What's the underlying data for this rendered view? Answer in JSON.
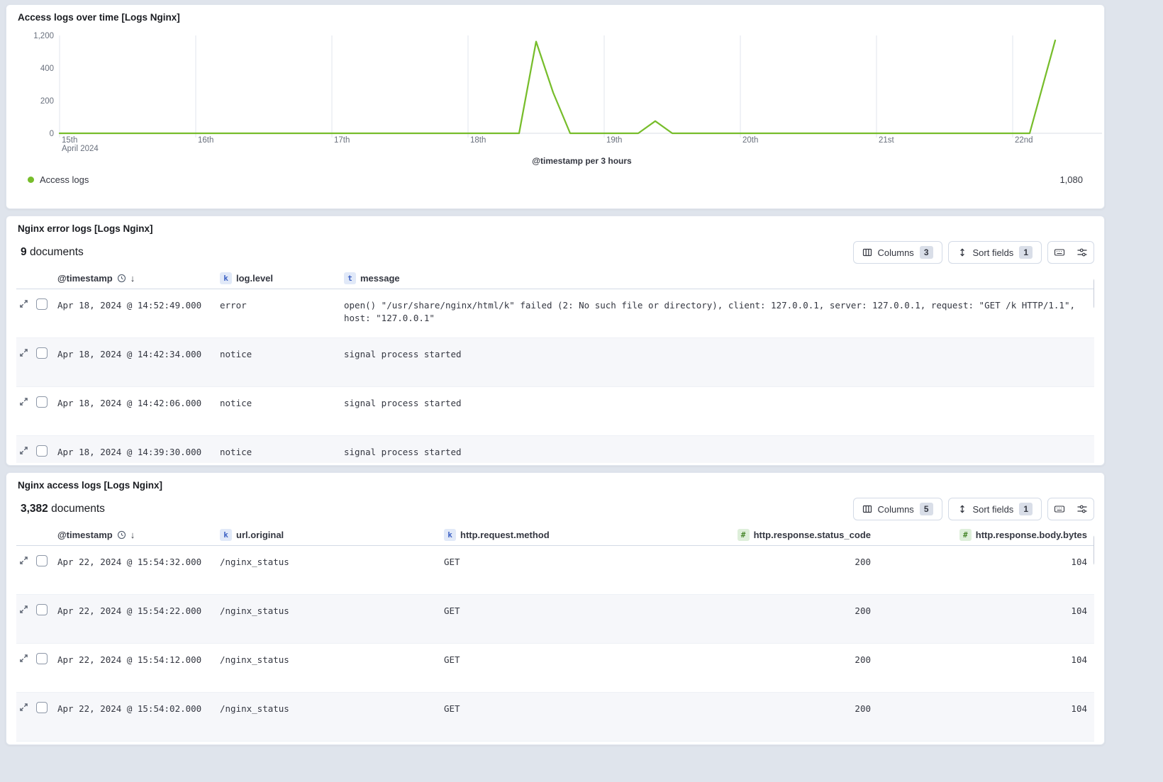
{
  "colors": {
    "series_green": "#77BD2B",
    "badge_blue_bg": "#E1E9F8",
    "badge_blue_fg": "#3F63C4",
    "badge_green_bg": "#DEEFDA",
    "badge_green_fg": "#4C8A31"
  },
  "chart_panel": {
    "title": "Access logs over time [Logs Nginx]",
    "x_axis_title": "@timestamp per 3 hours",
    "legend_label": "Access logs",
    "legend_value": "1,080"
  },
  "chart_data": {
    "type": "line",
    "title": "Access logs over time [Logs Nginx]",
    "xlabel": "@timestamp per 3 hours",
    "ylabel": "",
    "x_range": [
      "2024-04-15 00:00",
      "2024-04-22 09:00"
    ],
    "bucket_interval": "3 hours",
    "grid": "vertical-day-gridlines",
    "y_ticks": [
      "0",
      "200",
      "400",
      "1,200"
    ],
    "y_tick_values": [
      0,
      200,
      400,
      1200
    ],
    "x_ticks": [
      {
        "label": "15th",
        "sub": "April 2024",
        "h": 0
      },
      {
        "label": "16th",
        "h": 24
      },
      {
        "label": "17th",
        "h": 48
      },
      {
        "label": "18th",
        "h": 72
      },
      {
        "label": "19th",
        "h": 96
      },
      {
        "label": "20th",
        "h": 120
      },
      {
        "label": "21st",
        "h": 144
      },
      {
        "label": "22nd",
        "h": 168
      }
    ],
    "series": [
      {
        "name": "Access logs",
        "color": "#77BD2B",
        "note": "values are 0 between listed zero anchors; h = hours since 2024-04-15 00:00",
        "points": [
          {
            "t": "2024-04-15 00:00",
            "h": 0,
            "v": 0
          },
          {
            "t": "2024-04-18 09:00",
            "h": 81,
            "v": 0
          },
          {
            "t": "2024-04-18 12:00",
            "h": 84,
            "v": 1050
          },
          {
            "t": "2024-04-18 15:00",
            "h": 87,
            "v": 250
          },
          {
            "t": "2024-04-18 18:00",
            "h": 90,
            "v": 0
          },
          {
            "t": "2024-04-19 06:00",
            "h": 102,
            "v": 0
          },
          {
            "t": "2024-04-19 09:00",
            "h": 105,
            "v": 75
          },
          {
            "t": "2024-04-19 12:00",
            "h": 108,
            "v": 0
          },
          {
            "t": "2024-04-22 03:00",
            "h": 171,
            "v": 0
          },
          {
            "t": "2024-04-22 07:30",
            "h": 175.5,
            "v": 1080
          }
        ]
      }
    ],
    "legend": {
      "label": "Access logs",
      "value": "1,080",
      "position": "bottom-left"
    }
  },
  "error_table": {
    "title": "Nginx error logs [Logs Nginx]",
    "doc_count": "9",
    "doc_count_label": "documents",
    "toolbar": {
      "columns_label": "Columns",
      "columns_count": "3",
      "sort_label": "Sort fields",
      "sort_count": "1"
    },
    "columns": [
      {
        "label": "@timestamp",
        "type": "time",
        "sorted": "desc"
      },
      {
        "label": "log.level",
        "type": "keyword"
      },
      {
        "label": "message",
        "type": "text"
      }
    ],
    "rows": [
      [
        "Apr 18, 2024 @ 14:52:49.000",
        "error",
        "open() \"/usr/share/nginx/html/k\" failed (2: No such file or directory), client: 127.0.0.1, server: 127.0.0.1, request: \"GET /k HTTP/1.1\", host: \"127.0.0.1\""
      ],
      [
        "Apr 18, 2024 @ 14:42:34.000",
        "notice",
        "signal process started"
      ],
      [
        "Apr 18, 2024 @ 14:42:06.000",
        "notice",
        "signal process started"
      ],
      [
        "Apr 18, 2024 @ 14:39:30.000",
        "notice",
        "signal process started"
      ]
    ]
  },
  "access_table": {
    "title": "Nginx access logs [Logs Nginx]",
    "doc_count": "3,382",
    "doc_count_label": "documents",
    "toolbar": {
      "columns_label": "Columns",
      "columns_count": "5",
      "sort_label": "Sort fields",
      "sort_count": "1"
    },
    "columns": [
      {
        "label": "@timestamp",
        "type": "time",
        "sorted": "desc"
      },
      {
        "label": "url.original",
        "type": "keyword"
      },
      {
        "label": "http.request.method",
        "type": "keyword"
      },
      {
        "label": "http.response.status_code",
        "type": "number"
      },
      {
        "label": "http.response.body.bytes",
        "type": "number"
      }
    ],
    "rows": [
      [
        "Apr 22, 2024 @ 15:54:32.000",
        "/nginx_status",
        "GET",
        "200",
        "104"
      ],
      [
        "Apr 22, 2024 @ 15:54:22.000",
        "/nginx_status",
        "GET",
        "200",
        "104"
      ],
      [
        "Apr 22, 2024 @ 15:54:12.000",
        "/nginx_status",
        "GET",
        "200",
        "104"
      ],
      [
        "Apr 22, 2024 @ 15:54:02.000",
        "/nginx_status",
        "GET",
        "200",
        "104"
      ]
    ]
  }
}
